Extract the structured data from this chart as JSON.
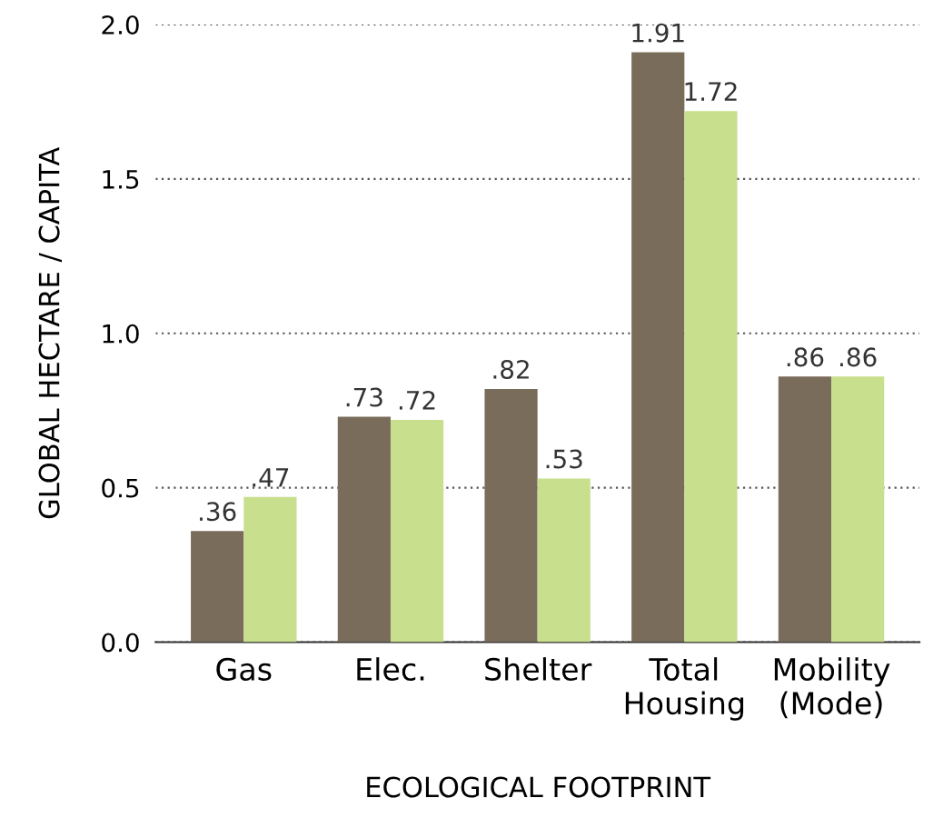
{
  "chart_data": {
    "type": "bar",
    "xlabel": "ECOLOGICAL FOOTPRINT",
    "ylabel": "GLOBAL HECTARE / CAPITA",
    "categories": [
      "Gas",
      "Elec.",
      "Shelter",
      "Total\nHousing",
      "Mobility\n(Mode)"
    ],
    "series": [
      {
        "color": "#7a6c5a",
        "values": [
          0.36,
          0.73,
          0.82,
          1.91,
          0.86
        ],
        "value_labels": [
          ".36",
          ".73",
          ".82",
          "1.91",
          ".86"
        ]
      },
      {
        "color": "#c8df8d",
        "values": [
          0.47,
          0.72,
          0.53,
          1.72,
          0.86
        ],
        "value_labels": [
          ".47",
          ".72",
          ".53",
          "1.72",
          ".86"
        ]
      }
    ],
    "ylim": [
      0,
      2.0
    ],
    "yticks": [
      {
        "value": 0,
        "label": "0.0"
      },
      {
        "value": 0.5,
        "label": "0.5"
      },
      {
        "value": 1.0,
        "label": "1.0"
      },
      {
        "value": 1.5,
        "label": "1.5"
      },
      {
        "value": 2.0,
        "label": "2.0"
      }
    ],
    "grid": "y",
    "legend": false
  }
}
